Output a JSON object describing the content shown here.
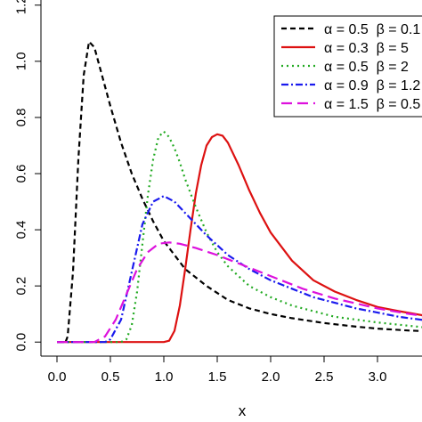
{
  "chart_data": {
    "type": "line",
    "title": "",
    "xlabel": "x",
    "ylabel": "",
    "xlim": [
      -0.15,
      3.55
    ],
    "ylim": [
      -0.05,
      1.25
    ],
    "x_ticks": [
      0.0,
      0.5,
      1.0,
      1.5,
      2.0,
      2.5,
      3.0
    ],
    "x_tick_labels": [
      "0.0",
      "0.5",
      "1.0",
      "1.5",
      "2.0",
      "2.5",
      "3.0"
    ],
    "y_ticks": [
      0.0,
      0.2,
      0.4,
      0.6,
      0.8,
      1.0,
      1.2
    ],
    "y_tick_labels": [
      "0.0",
      "0.2",
      "0.4",
      "0.6",
      "0.8",
      "1.0",
      "1.2"
    ],
    "grid": false,
    "legend_position": "top-right",
    "series": [
      {
        "name": "α = 0.5  β = 0.1",
        "color": "#000000",
        "dash": "6,4",
        "x": [
          0,
          0.08,
          0.1,
          0.15,
          0.2,
          0.25,
          0.3,
          0.35,
          0.4,
          0.5,
          0.6,
          0.7,
          0.8,
          0.9,
          1.0,
          1.2,
          1.4,
          1.6,
          1.8,
          2.0,
          2.2,
          2.5,
          2.8,
          3.0,
          3.3,
          3.5
        ],
        "y": [
          0,
          0,
          0.02,
          0.25,
          0.65,
          0.95,
          1.07,
          1.05,
          0.98,
          0.84,
          0.71,
          0.6,
          0.51,
          0.43,
          0.36,
          0.26,
          0.2,
          0.15,
          0.12,
          0.1,
          0.085,
          0.068,
          0.055,
          0.048,
          0.041,
          0.038
        ]
      },
      {
        "name": "α = 0.3  β = 5",
        "color": "#dd1111",
        "dash": "",
        "x": [
          0,
          1.0,
          1.05,
          1.1,
          1.15,
          1.2,
          1.25,
          1.3,
          1.35,
          1.4,
          1.45,
          1.5,
          1.55,
          1.6,
          1.7,
          1.8,
          1.9,
          2.0,
          2.2,
          2.4,
          2.6,
          2.8,
          3.0,
          3.2,
          3.5
        ],
        "y": [
          0,
          0,
          0.005,
          0.04,
          0.13,
          0.26,
          0.4,
          0.53,
          0.63,
          0.7,
          0.73,
          0.74,
          0.735,
          0.71,
          0.63,
          0.54,
          0.46,
          0.39,
          0.29,
          0.22,
          0.18,
          0.15,
          0.125,
          0.11,
          0.09
        ]
      },
      {
        "name": "α = 0.5  β = 2",
        "color": "#22aa22",
        "dash": "2,4",
        "x": [
          0,
          0.6,
          0.65,
          0.7,
          0.75,
          0.8,
          0.85,
          0.9,
          0.95,
          1.0,
          1.05,
          1.1,
          1.15,
          1.2,
          1.3,
          1.4,
          1.5,
          1.6,
          1.8,
          2.0,
          2.2,
          2.4,
          2.6,
          2.8,
          3.0,
          3.5
        ],
        "y": [
          0,
          0,
          0.01,
          0.06,
          0.18,
          0.35,
          0.52,
          0.65,
          0.73,
          0.75,
          0.73,
          0.69,
          0.64,
          0.58,
          0.48,
          0.39,
          0.32,
          0.27,
          0.2,
          0.16,
          0.13,
          0.11,
          0.09,
          0.08,
          0.07,
          0.05
        ]
      },
      {
        "name": "α = 0.9  β = 1.2",
        "color": "#1a1aee",
        "dash": "8,3,2,3",
        "x": [
          0,
          0.45,
          0.5,
          0.6,
          0.7,
          0.8,
          0.9,
          1.0,
          1.1,
          1.2,
          1.3,
          1.4,
          1.5,
          1.6,
          1.8,
          2.0,
          2.2,
          2.4,
          2.6,
          2.8,
          3.0,
          3.2,
          3.5
        ],
        "y": [
          0,
          0,
          0.01,
          0.08,
          0.25,
          0.42,
          0.5,
          0.52,
          0.5,
          0.46,
          0.42,
          0.38,
          0.345,
          0.31,
          0.26,
          0.22,
          0.19,
          0.16,
          0.14,
          0.12,
          0.105,
          0.09,
          0.075
        ]
      },
      {
        "name": "α = 1.5  β = 0.5",
        "color": "#dd11dd",
        "dash": "12,6",
        "x": [
          0,
          0.35,
          0.45,
          0.55,
          0.65,
          0.75,
          0.85,
          0.95,
          1.05,
          1.15,
          1.3,
          1.5,
          1.7,
          2.0,
          2.3,
          2.6,
          3.0,
          3.3,
          3.5
        ],
        "y": [
          0,
          0,
          0.02,
          0.08,
          0.17,
          0.26,
          0.32,
          0.35,
          0.355,
          0.35,
          0.335,
          0.31,
          0.28,
          0.235,
          0.19,
          0.155,
          0.12,
          0.1,
          0.09
        ]
      }
    ]
  }
}
